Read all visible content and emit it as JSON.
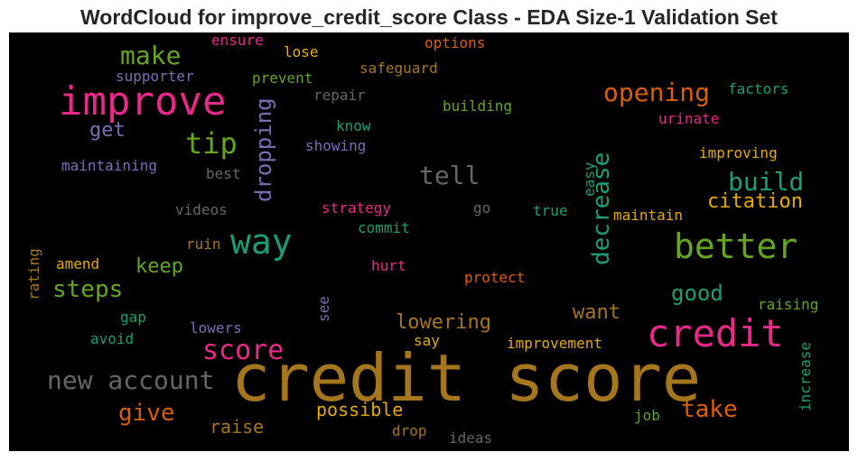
{
  "title": "WordCloud for improve_credit_score Class - EDA Size-1 Validation Set",
  "chart_data": {
    "type": "wordcloud",
    "background": "#000000",
    "words": [
      {
        "text": "credit score",
        "color": "#a6761d"
      },
      {
        "text": "improve",
        "color": "#e7298a"
      },
      {
        "text": "credit",
        "color": "#e7298a"
      },
      {
        "text": "better",
        "color": "#66a61e"
      },
      {
        "text": "way",
        "color": "#1b9e77"
      },
      {
        "text": "tip",
        "color": "#66a61e"
      },
      {
        "text": "opening",
        "color": "#d95f02"
      },
      {
        "text": "make",
        "color": "#66a61e"
      },
      {
        "text": "score",
        "color": "#e7298a"
      },
      {
        "text": "new account",
        "color": "#666666"
      },
      {
        "text": "build",
        "color": "#1b9e77"
      },
      {
        "text": "tell",
        "color": "#666666"
      },
      {
        "text": "decrease",
        "color": "#1b9e77"
      },
      {
        "text": "dropping",
        "color": "#7570b3"
      },
      {
        "text": "steps",
        "color": "#66a61e"
      },
      {
        "text": "give",
        "color": "#d95f02"
      },
      {
        "text": "take",
        "color": "#d95f02"
      },
      {
        "text": "citation",
        "color": "#e6ab02"
      },
      {
        "text": "good",
        "color": "#1b9e77"
      },
      {
        "text": "get",
        "color": "#7570b3"
      },
      {
        "text": "keep",
        "color": "#66a61e"
      },
      {
        "text": "lowering",
        "color": "#a6761d"
      },
      {
        "text": "want",
        "color": "#a6761d"
      },
      {
        "text": "possible",
        "color": "#e6ab02"
      },
      {
        "text": "raise",
        "color": "#a6761d"
      },
      {
        "text": "factors",
        "color": "#1b9e77"
      },
      {
        "text": "supporter",
        "color": "#7570b3"
      },
      {
        "text": "maintaining",
        "color": "#7570b3"
      },
      {
        "text": "prevent",
        "color": "#66a61e"
      },
      {
        "text": "safeguard",
        "color": "#a6761d"
      },
      {
        "text": "options",
        "color": "#d95f02"
      },
      {
        "text": "ensure",
        "color": "#e7298a"
      },
      {
        "text": "lose",
        "color": "#e6ab02"
      },
      {
        "text": "repair",
        "color": "#666666"
      },
      {
        "text": "building",
        "color": "#66a61e"
      },
      {
        "text": "know",
        "color": "#1b9e77"
      },
      {
        "text": "showing",
        "color": "#7570b3"
      },
      {
        "text": "urinate",
        "color": "#e7298a"
      },
      {
        "text": "improving",
        "color": "#e6ab02"
      },
      {
        "text": "best",
        "color": "#666666"
      },
      {
        "text": "easy",
        "color": "#1b9e77"
      },
      {
        "text": "videos",
        "color": "#666666"
      },
      {
        "text": "strategy",
        "color": "#e7298a"
      },
      {
        "text": "go",
        "color": "#666666"
      },
      {
        "text": "true",
        "color": "#1b9e77"
      },
      {
        "text": "maintain",
        "color": "#e6ab02"
      },
      {
        "text": "commit",
        "color": "#1b9e77"
      },
      {
        "text": "ruin",
        "color": "#a6761d"
      },
      {
        "text": "rating",
        "color": "#a6761d"
      },
      {
        "text": "amend",
        "color": "#e6ab02"
      },
      {
        "text": "hurt",
        "color": "#e7298a"
      },
      {
        "text": "protect",
        "color": "#d95f02"
      },
      {
        "text": "raising",
        "color": "#66a61e"
      },
      {
        "text": "see",
        "color": "#7570b3"
      },
      {
        "text": "gap",
        "color": "#1b9e77"
      },
      {
        "text": "lowers",
        "color": "#7570b3"
      },
      {
        "text": "avoid",
        "color": "#1b9e77"
      },
      {
        "text": "say",
        "color": "#e6ab02"
      },
      {
        "text": "improvement",
        "color": "#e6ab02"
      },
      {
        "text": "increase",
        "color": "#1b9e77"
      },
      {
        "text": "job",
        "color": "#66a61e"
      },
      {
        "text": "drop",
        "color": "#a6761d"
      },
      {
        "text": "ideas",
        "color": "#666666"
      }
    ]
  }
}
